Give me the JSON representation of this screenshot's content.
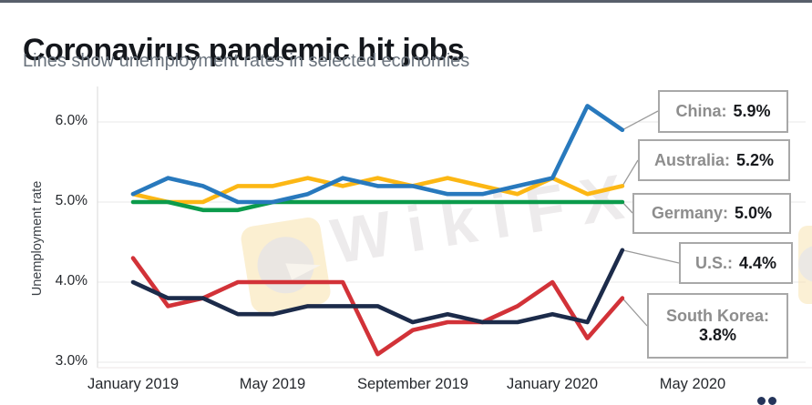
{
  "page": {
    "title": "Coronavirus pandemic hit jobs",
    "subtitle": "Lines show unemployment rates in selected economies",
    "watermark": "WikiFX"
  },
  "chart_data": {
    "type": "line",
    "title": "Coronavirus pandemic hit jobs",
    "subtitle": "Lines show unemployment rates in selected economies",
    "ylabel": "Unemployment rate",
    "ylim": [
      2.9,
      6.45
    ],
    "grid": true,
    "legend_position": "right-callout-boxes",
    "y_tick_labels": [
      "6.0%",
      "5.0%",
      "4.0%",
      "3.0%"
    ],
    "y_tick_values": [
      6.0,
      5.0,
      4.0,
      3.0
    ],
    "x_tick_labels": [
      "January 2019",
      "May 2019",
      "September 2019",
      "January 2020",
      "May 2020"
    ],
    "x_tick_month_index": [
      0,
      4,
      8,
      12,
      16
    ],
    "x": [
      "Jan 2019",
      "Feb 2019",
      "Mar 2019",
      "Apr 2019",
      "May 2019",
      "Jun 2019",
      "Jul 2019",
      "Aug 2019",
      "Sep 2019",
      "Oct 2019",
      "Nov 2019",
      "Dec 2019",
      "Jan 2020",
      "Feb 2020",
      "Mar 2020"
    ],
    "series": [
      {
        "name": "Australia",
        "callout_label": "Australia:",
        "callout_value": "5.2%",
        "color": "#FCB714",
        "values": [
          5.1,
          5.0,
          5.0,
          5.2,
          5.2,
          5.3,
          5.2,
          5.3,
          5.2,
          5.3,
          5.2,
          5.1,
          5.3,
          5.1,
          5.2
        ]
      },
      {
        "name": "Germany",
        "callout_label": "Germany:",
        "callout_value": "5.0%",
        "color": "#0B9B4B",
        "values": [
          5.0,
          5.0,
          4.9,
          4.9,
          5.0,
          5.0,
          5.0,
          5.0,
          5.0,
          5.0,
          5.0,
          5.0,
          5.0,
          5.0,
          5.0
        ]
      },
      {
        "name": "China",
        "callout_label": "China:",
        "callout_value": "5.9%",
        "color": "#2879BD",
        "values": [
          5.1,
          5.3,
          5.2,
          5.0,
          5.0,
          5.1,
          5.3,
          5.2,
          5.2,
          5.1,
          5.1,
          5.2,
          5.3,
          6.2,
          5.9
        ]
      },
      {
        "name": "South Korea",
        "callout_label": "South Korea:",
        "callout_value": "3.8%",
        "color": "#D23238",
        "values": [
          4.3,
          3.7,
          3.8,
          4.0,
          4.0,
          4.0,
          4.0,
          3.1,
          3.4,
          3.5,
          3.5,
          3.7,
          4.0,
          3.3,
          3.8
        ]
      },
      {
        "name": "U.S.",
        "callout_label": "U.S.:",
        "callout_value": "4.4%",
        "color": "#1C2B4A",
        "values": [
          4.0,
          3.8,
          3.8,
          3.6,
          3.6,
          3.7,
          3.7,
          3.7,
          3.5,
          3.6,
          3.5,
          3.5,
          3.6,
          3.5,
          4.4
        ]
      }
    ]
  }
}
